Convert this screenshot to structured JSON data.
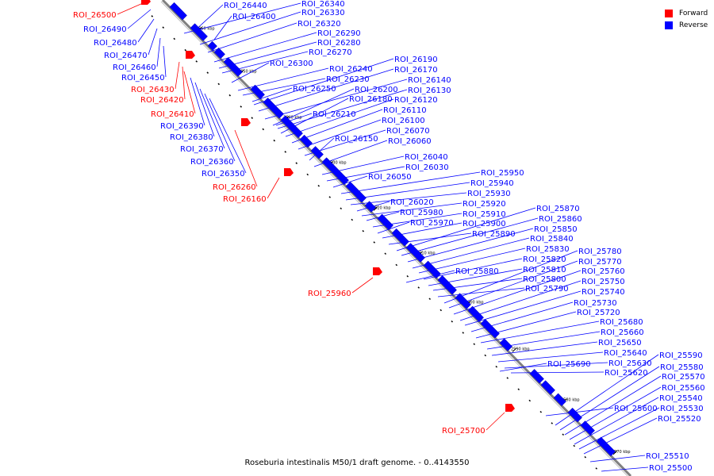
{
  "colors": {
    "forward": "#ff0000",
    "reverse": "#0000ff",
    "backbone": "#808080",
    "tick": "#000000"
  },
  "legend": {
    "forward": "Forward",
    "reverse": "Reverse"
  },
  "caption": "Roseburia intestinalis M50/1 draft genome. - 0..4143550",
  "scale_labels": [
    "2660 kbp",
    "2650 kbp",
    "2640 kbp",
    "2630 kbp",
    "2620 kbp",
    "2610 kbp",
    "2600 kbp",
    "2590 kbp",
    "2580 kbp",
    "2570 kbp"
  ],
  "labels": [
    {
      "t": "ROI_26500",
      "s": "forward"
    },
    {
      "t": "ROI_26490",
      "s": "reverse"
    },
    {
      "t": "ROI_26480",
      "s": "reverse"
    },
    {
      "t": "ROI_26470",
      "s": "reverse"
    },
    {
      "t": "ROI_26460",
      "s": "reverse"
    },
    {
      "t": "ROI_26450",
      "s": "reverse"
    },
    {
      "t": "ROI_26430",
      "s": "forward"
    },
    {
      "t": "ROI_26420",
      "s": "forward"
    },
    {
      "t": "ROI_26410",
      "s": "forward"
    },
    {
      "t": "ROI_26390",
      "s": "reverse"
    },
    {
      "t": "ROI_26380",
      "s": "reverse"
    },
    {
      "t": "ROI_26370",
      "s": "reverse"
    },
    {
      "t": "ROI_26360",
      "s": "reverse"
    },
    {
      "t": "ROI_26350",
      "s": "reverse"
    },
    {
      "t": "ROI_26260",
      "s": "forward"
    },
    {
      "t": "ROI_26160",
      "s": "forward"
    },
    {
      "t": "ROI_25960",
      "s": "forward"
    },
    {
      "t": "ROI_25700",
      "s": "forward"
    },
    {
      "t": "ROI_26440",
      "s": "reverse"
    },
    {
      "t": "ROI_26400",
      "s": "reverse"
    },
    {
      "t": "ROI_26340",
      "s": "reverse"
    },
    {
      "t": "ROI_26330",
      "s": "reverse"
    },
    {
      "t": "ROI_26320",
      "s": "reverse"
    },
    {
      "t": "ROI_26290",
      "s": "reverse"
    },
    {
      "t": "ROI_26280",
      "s": "reverse"
    },
    {
      "t": "ROI_26270",
      "s": "reverse"
    },
    {
      "t": "ROI_26300",
      "s": "reverse"
    },
    {
      "t": "ROI_26240",
      "s": "reverse"
    },
    {
      "t": "ROI_26230",
      "s": "reverse"
    },
    {
      "t": "ROI_26250",
      "s": "reverse"
    },
    {
      "t": "ROI_26190",
      "s": "reverse"
    },
    {
      "t": "ROI_26170",
      "s": "reverse"
    },
    {
      "t": "ROI_26140",
      "s": "reverse"
    },
    {
      "t": "ROI_26200",
      "s": "reverse"
    },
    {
      "t": "ROI_26130",
      "s": "reverse"
    },
    {
      "t": "ROI_26180",
      "s": "reverse"
    },
    {
      "t": "ROI_26120",
      "s": "reverse"
    },
    {
      "t": "ROI_26210",
      "s": "reverse"
    },
    {
      "t": "ROI_26110",
      "s": "reverse"
    },
    {
      "t": "ROI_26100",
      "s": "reverse"
    },
    {
      "t": "ROI_26070",
      "s": "reverse"
    },
    {
      "t": "ROI_26150",
      "s": "reverse"
    },
    {
      "t": "ROI_26060",
      "s": "reverse"
    },
    {
      "t": "ROI_26040",
      "s": "reverse"
    },
    {
      "t": "ROI_26030",
      "s": "reverse"
    },
    {
      "t": "ROI_26050",
      "s": "reverse"
    },
    {
      "t": "ROI_25950",
      "s": "reverse"
    },
    {
      "t": "ROI_25940",
      "s": "reverse"
    },
    {
      "t": "ROI_25930",
      "s": "reverse"
    },
    {
      "t": "ROI_26020",
      "s": "reverse"
    },
    {
      "t": "ROI_25920",
      "s": "reverse"
    },
    {
      "t": "ROI_25980",
      "s": "reverse"
    },
    {
      "t": "ROI_25910",
      "s": "reverse"
    },
    {
      "t": "ROI_25970",
      "s": "reverse"
    },
    {
      "t": "ROI_25900",
      "s": "reverse"
    },
    {
      "t": "ROI_25890",
      "s": "reverse"
    },
    {
      "t": "ROI_25880",
      "s": "reverse"
    },
    {
      "t": "ROI_25870",
      "s": "reverse"
    },
    {
      "t": "ROI_25860",
      "s": "reverse"
    },
    {
      "t": "ROI_25850",
      "s": "reverse"
    },
    {
      "t": "ROI_25840",
      "s": "reverse"
    },
    {
      "t": "ROI_25830",
      "s": "reverse"
    },
    {
      "t": "ROI_25820",
      "s": "reverse"
    },
    {
      "t": "ROI_25810",
      "s": "reverse"
    },
    {
      "t": "ROI_25800",
      "s": "reverse"
    },
    {
      "t": "ROI_25790",
      "s": "reverse"
    },
    {
      "t": "ROI_25780",
      "s": "reverse"
    },
    {
      "t": "ROI_25770",
      "s": "reverse"
    },
    {
      "t": "ROI_25760",
      "s": "reverse"
    },
    {
      "t": "ROI_25750",
      "s": "reverse"
    },
    {
      "t": "ROI_25740",
      "s": "reverse"
    },
    {
      "t": "ROI_25730",
      "s": "reverse"
    },
    {
      "t": "ROI_25720",
      "s": "reverse"
    },
    {
      "t": "ROI_25690",
      "s": "reverse"
    },
    {
      "t": "ROI_25680",
      "s": "reverse"
    },
    {
      "t": "ROI_25660",
      "s": "reverse"
    },
    {
      "t": "ROI_25650",
      "s": "reverse"
    },
    {
      "t": "ROI_25640",
      "s": "reverse"
    },
    {
      "t": "ROI_25630",
      "s": "reverse"
    },
    {
      "t": "ROI_25620",
      "s": "reverse"
    },
    {
      "t": "ROI_25600",
      "s": "reverse"
    },
    {
      "t": "ROI_25590",
      "s": "reverse"
    },
    {
      "t": "ROI_25580",
      "s": "reverse"
    },
    {
      "t": "ROI_25570",
      "s": "reverse"
    },
    {
      "t": "ROI_25560",
      "s": "reverse"
    },
    {
      "t": "ROI_25540",
      "s": "reverse"
    },
    {
      "t": "ROI_25530",
      "s": "reverse"
    },
    {
      "t": "ROI_25520",
      "s": "reverse"
    },
    {
      "t": "ROI_25510",
      "s": "reverse"
    },
    {
      "t": "ROI_25500",
      "s": "reverse"
    }
  ]
}
